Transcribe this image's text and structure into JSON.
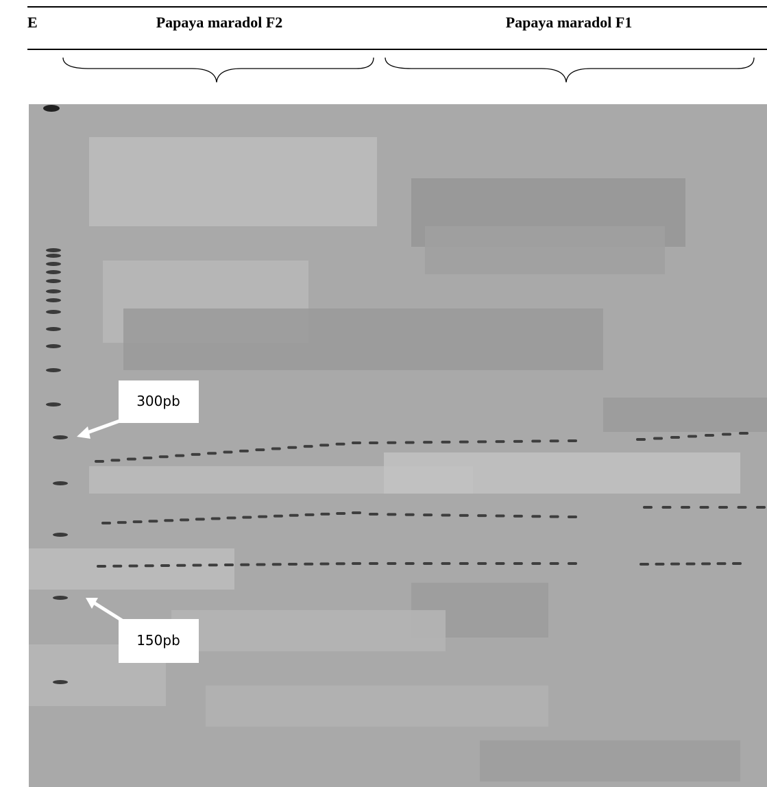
{
  "header": {
    "lane_label": "E",
    "group_left": "Papaya maradol F2",
    "group_right": "Papaya maradol F1"
  },
  "annotations": {
    "upper": "300pb",
    "lower": "150pb"
  }
}
